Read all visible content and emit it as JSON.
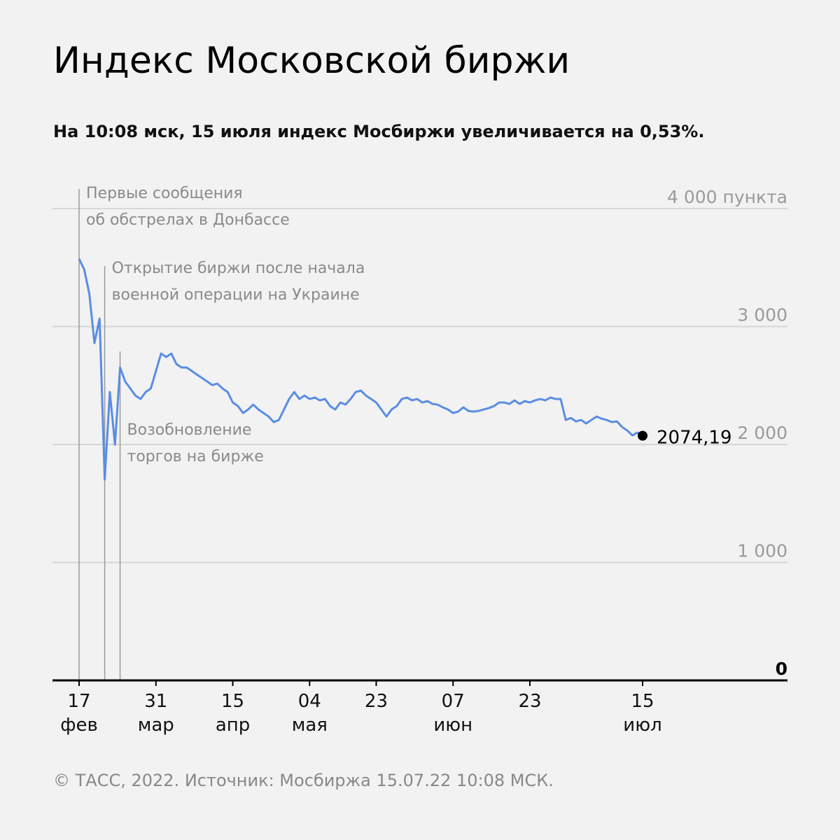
{
  "chart_data": {
    "type": "line",
    "title": "Индекс Московской биржи",
    "subtitle": "На 10:08 мск, 15 июля индекс Мосбиржи увеличивается на 0,53%.",
    "footer": "© ТАСС, 2022. Источник: Мосбиржа 15.07.22 10:08 МСК.",
    "categories": [
      "17 фев",
      null,
      null,
      null,
      null,
      null,
      null,
      null,
      null,
      null,
      null,
      null,
      null,
      null,
      null,
      "31 мар",
      null,
      null,
      null,
      null,
      null,
      null,
      null,
      null,
      null,
      null,
      null,
      null,
      null,
      null,
      "15 апр",
      null,
      null,
      null,
      null,
      null,
      null,
      null,
      null,
      null,
      null,
      null,
      null,
      null,
      null,
      "04 мая",
      null,
      null,
      null,
      null,
      null,
      null,
      null,
      null,
      null,
      null,
      null,
      null,
      "23",
      null,
      null,
      null,
      null,
      null,
      null,
      null,
      null,
      null,
      null,
      null,
      null,
      null,
      null,
      "07 июн",
      null,
      null,
      null,
      null,
      null,
      null,
      null,
      null,
      null,
      null,
      null,
      null,
      null,
      null,
      "23",
      null,
      null,
      null,
      null,
      null,
      null,
      null,
      null,
      null,
      null,
      null,
      null,
      null,
      null,
      null,
      null,
      null,
      null,
      null,
      null,
      null,
      "15 июл"
    ],
    "series": [
      {
        "name": "Индекс Мосбиржи",
        "color": "#5b8de3",
        "values": [
          3573,
          3484,
          3276,
          2860,
          3068,
          1703,
          2445,
          2000,
          2653,
          2534,
          2475,
          2415,
          2386,
          2445,
          2475,
          2623,
          2771,
          2742,
          2771,
          2682,
          2653,
          2653,
          2623,
          2593,
          2564,
          2534,
          2504,
          2516,
          2475,
          2445,
          2356,
          2326,
          2267,
          2297,
          2338,
          2297,
          2267,
          2237,
          2190,
          2208,
          2297,
          2386,
          2445,
          2386,
          2415,
          2386,
          2398,
          2374,
          2386,
          2326,
          2297,
          2356,
          2338,
          2386,
          2445,
          2457,
          2415,
          2386,
          2356,
          2297,
          2237,
          2297,
          2326,
          2386,
          2398,
          2374,
          2386,
          2356,
          2368,
          2344,
          2338,
          2315,
          2297,
          2267,
          2279,
          2315,
          2285,
          2279,
          2285,
          2297,
          2309,
          2326,
          2356,
          2356,
          2344,
          2374,
          2344,
          2368,
          2356,
          2374,
          2386,
          2374,
          2398,
          2386,
          2386,
          2208,
          2225,
          2196,
          2208,
          2178,
          2208,
          2237,
          2219,
          2208,
          2190,
          2196,
          2148,
          2119,
          2077,
          2101,
          2074.19
        ],
        "value_labels": [
          null,
          null,
          null,
          null,
          null,
          null,
          null,
          null,
          null,
          null,
          null,
          null,
          null,
          null,
          null,
          null,
          null,
          null,
          null,
          null,
          null,
          null,
          null,
          null,
          null,
          null,
          null,
          null,
          null,
          null,
          null,
          null,
          null,
          null,
          null,
          null,
          null,
          null,
          null,
          null,
          null,
          null,
          null,
          null,
          null,
          null,
          null,
          null,
          null,
          null,
          null,
          null,
          null,
          null,
          null,
          null,
          null,
          null,
          null,
          null,
          null,
          null,
          null,
          null,
          null,
          null,
          null,
          null,
          null,
          null,
          null,
          null,
          null,
          null,
          null,
          null,
          null,
          null,
          null,
          null,
          null,
          null,
          null,
          null,
          null,
          null,
          null,
          null,
          null,
          null,
          null,
          null,
          null,
          null,
          null,
          null,
          null,
          null,
          null,
          null,
          null,
          null,
          null,
          null,
          null,
          null,
          null,
          null,
          null,
          null,
          "2074,19"
        ]
      }
    ],
    "ylim": [
      0,
      4000
    ],
    "yticks": [
      0,
      {
        "value": 1000,
        "label": "1 000"
      },
      {
        "value": 2000,
        "label": "2 000"
      },
      {
        "value": 3000,
        "label": "3 000"
      },
      {
        "value": 4000,
        "label": "4 000 пункта"
      }
    ],
    "grid": true,
    "annotations": [
      {
        "index": 0,
        "text": [
          "Первые сообщения",
          "об обстрелах в Донбассе"
        ]
      },
      {
        "index": 5,
        "text": [
          "Открытие биржи после начала",
          "военной операции на Украине"
        ]
      },
      {
        "index": 8,
        "text": [
          "Возобновление",
          "торгов на бирже"
        ]
      }
    ]
  }
}
